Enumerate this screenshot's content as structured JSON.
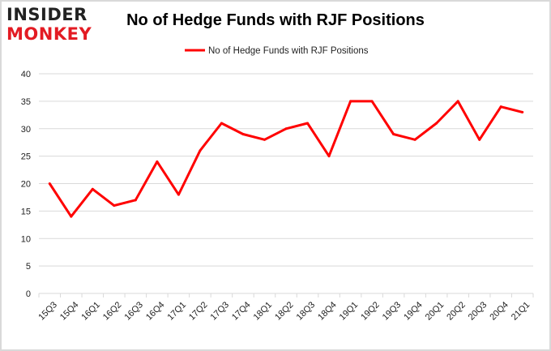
{
  "logo": {
    "line1": "INSIDER",
    "line2": "MONKEY",
    "name": "insider-monkey-logo"
  },
  "colors": {
    "series": "#ff0000",
    "grid": "#d9d9d9",
    "logo_red": "#e31b23"
  },
  "chart_data": {
    "type": "line",
    "title": "No of Hedge Funds with RJF Positions",
    "xlabel": "",
    "ylabel": "",
    "categories": [
      "15Q3",
      "15Q4",
      "16Q1",
      "16Q2",
      "16Q3",
      "16Q4",
      "17Q1",
      "17Q2",
      "17Q3",
      "17Q4",
      "18Q1",
      "18Q2",
      "18Q3",
      "18Q4",
      "19Q1",
      "19Q2",
      "19Q3",
      "19Q4",
      "20Q1",
      "20Q2",
      "20Q3",
      "20Q4",
      "21Q1"
    ],
    "series": [
      {
        "name": "No of Hedge Funds with RJF Positions",
        "values": [
          20,
          14,
          19,
          16,
          17,
          24,
          18,
          26,
          31,
          29,
          28,
          30,
          31,
          25,
          35,
          35,
          29,
          28,
          31,
          35,
          28,
          34,
          33
        ]
      }
    ],
    "ylim": [
      0,
      40
    ],
    "yticks": [
      0,
      5,
      10,
      15,
      20,
      25,
      30,
      35,
      40
    ],
    "grid": true,
    "legend": "top"
  }
}
